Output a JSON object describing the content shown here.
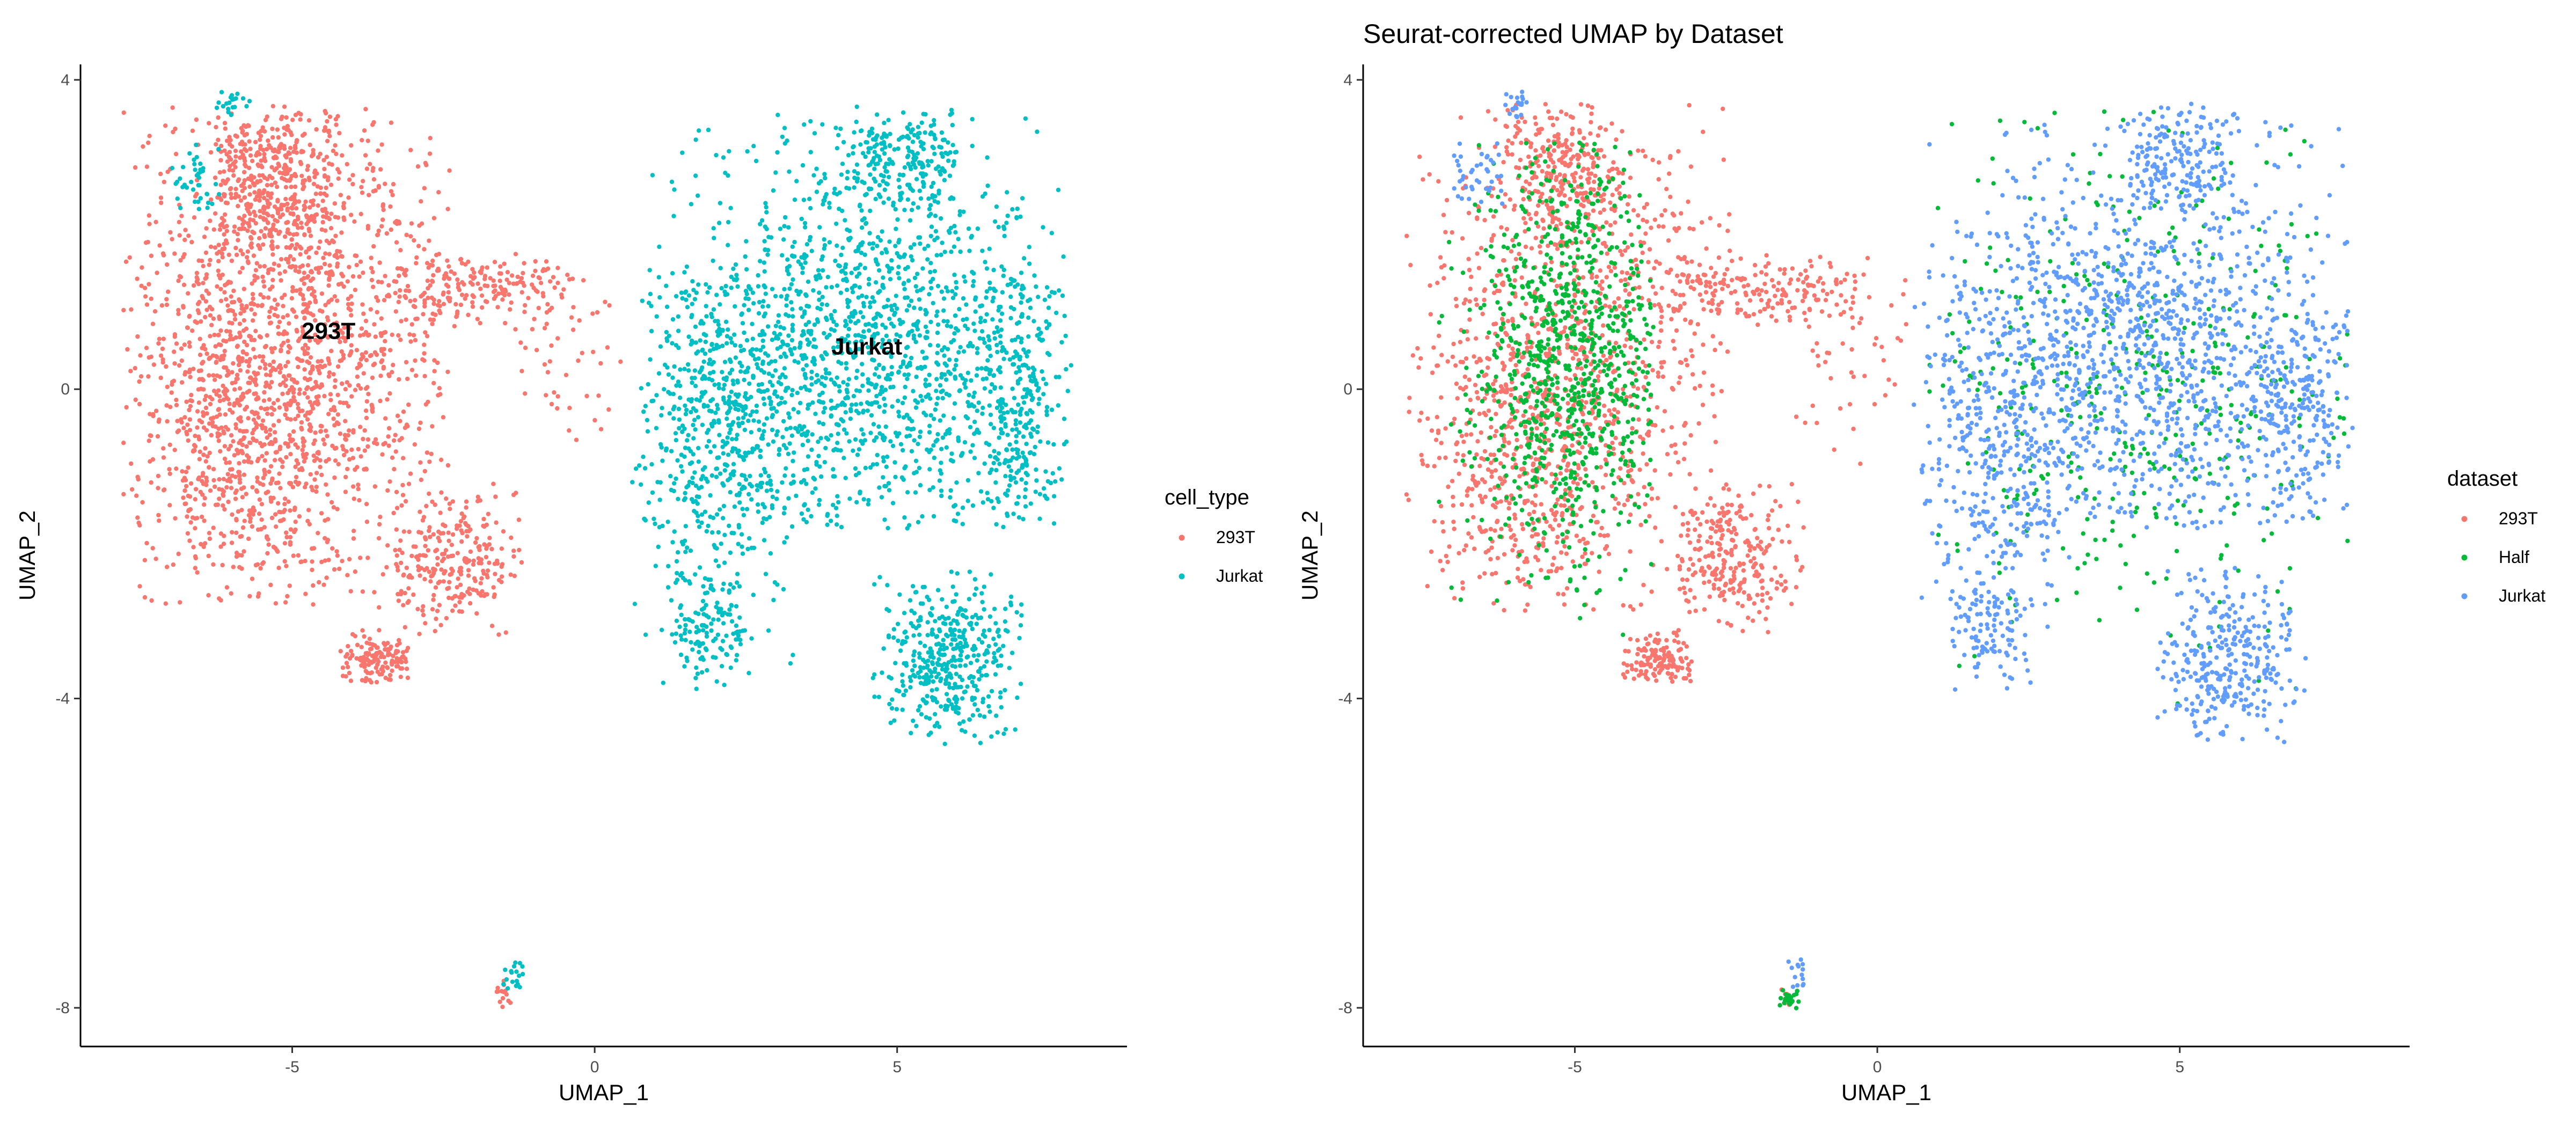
{
  "chart_data": [
    {
      "type": "scatter",
      "title": "",
      "xlabel": "UMAP_1",
      "ylabel": "UMAP_2",
      "xlim": [
        -8.5,
        8.8
      ],
      "ylim": [
        -8.5,
        4.2
      ],
      "x_ticks": [
        -5,
        0,
        5
      ],
      "y_ticks": [
        -8,
        -4,
        0,
        4
      ],
      "x_tick_labels": [
        "-5",
        "0",
        "5"
      ],
      "y_tick_labels": [
        "-8",
        "-4",
        "0",
        "4"
      ],
      "grid": false,
      "legend": {
        "title": "cell_type",
        "position": "right"
      },
      "series": [
        {
          "name": "293T",
          "color": "#F8766D"
        },
        {
          "name": "Jurkat",
          "color": "#00BFC4"
        }
      ],
      "annotations": [
        {
          "text": "293T",
          "x": -4.4,
          "y": 0.65
        },
        {
          "text": "Jurkat",
          "x": 4.5,
          "y": 0.45
        }
      ],
      "clusters": [
        {
          "series": 0,
          "cx": -5.0,
          "cy": 0.8,
          "sx": 1.4,
          "sy": 1.6,
          "n": 1400,
          "xmin": -7.8,
          "xmax": -2.4,
          "ymin": -3.0,
          "ymax": 3.7
        },
        {
          "series": 0,
          "cx": -5.8,
          "cy": -0.8,
          "sx": 0.9,
          "sy": 1.1,
          "n": 500,
          "xmin": -7.6,
          "xmax": -3.5,
          "ymin": -2.8,
          "ymax": 1.2
        },
        {
          "series": 0,
          "cx": -5.3,
          "cy": 2.7,
          "sx": 0.7,
          "sy": 0.6,
          "n": 350,
          "xmin": -6.2,
          "xmax": -4.2,
          "ymin": 1.5,
          "ymax": 3.6
        },
        {
          "series": 0,
          "cx": -2.4,
          "cy": -2.2,
          "sx": 0.6,
          "sy": 0.45,
          "n": 250,
          "xmin": -3.3,
          "xmax": -1.2,
          "ymin": -3.2,
          "ymax": -1.2
        },
        {
          "series": 0,
          "cx": -3.6,
          "cy": -3.5,
          "sx": 0.35,
          "sy": 0.18,
          "n": 140,
          "xmin": -4.2,
          "xmax": -3.0,
          "ymin": -3.8,
          "ymax": -3.1
        },
        {
          "series": 0,
          "cx": -2.0,
          "cy": 1.3,
          "sx": 1.0,
          "sy": 0.22,
          "n": 180,
          "xmin": -3.5,
          "xmax": -0.3,
          "ymin": 0.8,
          "ymax": 1.8
        },
        {
          "series": 0,
          "cx": -0.5,
          "cy": 0.5,
          "sx": 0.6,
          "sy": 0.8,
          "n": 50,
          "xmin": -1.5,
          "xmax": 0.5,
          "ymin": -1.2,
          "ymax": 1.7
        },
        {
          "series": 0,
          "cx": -1.5,
          "cy": -7.85,
          "sx": 0.06,
          "sy": 0.08,
          "n": 14,
          "xmin": -1.7,
          "xmax": -1.3,
          "ymin": -8.0,
          "ymax": -7.6
        },
        {
          "series": 1,
          "cx": 4.5,
          "cy": 0.6,
          "sx": 1.6,
          "sy": 1.3,
          "n": 1500,
          "xmin": 0.8,
          "xmax": 7.8,
          "ymin": -1.8,
          "ymax": 3.6
        },
        {
          "series": 1,
          "cx": 2.0,
          "cy": -0.6,
          "sx": 0.7,
          "sy": 1.2,
          "n": 500,
          "xmin": 0.6,
          "xmax": 3.6,
          "ymin": -3.9,
          "ymax": 1.6
        },
        {
          "series": 1,
          "cx": 7.0,
          "cy": -0.3,
          "sx": 0.45,
          "sy": 0.9,
          "n": 250,
          "xmin": 6.0,
          "xmax": 7.9,
          "ymin": -1.8,
          "ymax": 1.4
        },
        {
          "series": 1,
          "cx": 5.8,
          "cy": -3.5,
          "sx": 0.65,
          "sy": 0.55,
          "n": 420,
          "xmin": 4.6,
          "xmax": 7.1,
          "ymin": -4.6,
          "ymax": -2.3
        },
        {
          "series": 1,
          "cx": 1.8,
          "cy": -3.1,
          "sx": 0.35,
          "sy": 0.4,
          "n": 120,
          "xmin": 1.0,
          "xmax": 2.6,
          "ymin": -3.9,
          "ymax": -2.3
        },
        {
          "series": 1,
          "cx": 5.0,
          "cy": 3.0,
          "sx": 0.6,
          "sy": 0.35,
          "n": 200,
          "xmin": 4.0,
          "xmax": 6.0,
          "ymin": 2.3,
          "ymax": 3.7
        },
        {
          "series": 1,
          "cx": -6.6,
          "cy": 2.7,
          "sx": 0.35,
          "sy": 0.3,
          "n": 40,
          "xmin": -7.0,
          "xmax": -6.2,
          "ymin": 2.3,
          "ymax": 3.2
        },
        {
          "series": 1,
          "cx": -6.0,
          "cy": 3.7,
          "sx": 0.15,
          "sy": 0.1,
          "n": 20,
          "xmin": -6.3,
          "xmax": -5.7,
          "ymin": 3.5,
          "ymax": 3.85
        },
        {
          "series": 1,
          "cx": -1.3,
          "cy": -7.6,
          "sx": 0.12,
          "sy": 0.15,
          "n": 18,
          "xmin": -1.6,
          "xmax": -1.1,
          "ymin": -7.9,
          "ymax": -7.3
        }
      ]
    },
    {
      "type": "scatter",
      "title": "Seurat-corrected UMAP by Dataset",
      "xlabel": "UMAP_1",
      "ylabel": "UMAP_2",
      "xlim": [
        -8.5,
        8.8
      ],
      "ylim": [
        -8.5,
        4.2
      ],
      "x_ticks": [
        -5,
        0,
        5
      ],
      "y_ticks": [
        -8,
        -4,
        0,
        4
      ],
      "x_tick_labels": [
        "-5",
        "0",
        "5"
      ],
      "y_tick_labels": [
        "-8",
        "-4",
        "0",
        "4"
      ],
      "grid": false,
      "legend": {
        "title": "dataset",
        "position": "right"
      },
      "series": [
        {
          "name": "293T",
          "color": "#F8766D"
        },
        {
          "name": "Half",
          "color": "#00BA38"
        },
        {
          "name": "Jurkat",
          "color": "#619CFF"
        }
      ],
      "annotations": [],
      "clusters": [
        {
          "series": 0,
          "cx": -5.0,
          "cy": 0.6,
          "sx": 1.4,
          "sy": 1.6,
          "n": 900,
          "xmin": -7.8,
          "xmax": -2.4,
          "ymin": -3.0,
          "ymax": 3.7
        },
        {
          "series": 0,
          "cx": -5.9,
          "cy": -1.0,
          "sx": 0.8,
          "sy": 1.0,
          "n": 350,
          "xmin": -7.6,
          "xmax": -3.8,
          "ymin": -2.8,
          "ymax": 1.2
        },
        {
          "series": 0,
          "cx": -5.3,
          "cy": 2.8,
          "sx": 0.6,
          "sy": 0.5,
          "n": 220,
          "xmin": -6.2,
          "xmax": -4.2,
          "ymin": 1.8,
          "ymax": 3.6
        },
        {
          "series": 0,
          "cx": -2.4,
          "cy": -2.2,
          "sx": 0.6,
          "sy": 0.45,
          "n": 250,
          "xmin": -3.3,
          "xmax": -1.2,
          "ymin": -3.2,
          "ymax": -1.2
        },
        {
          "series": 0,
          "cx": -3.6,
          "cy": -3.5,
          "sx": 0.35,
          "sy": 0.18,
          "n": 140,
          "xmin": -4.2,
          "xmax": -3.0,
          "ymin": -3.8,
          "ymax": -3.1
        },
        {
          "series": 0,
          "cx": -2.0,
          "cy": 1.3,
          "sx": 1.0,
          "sy": 0.22,
          "n": 180,
          "xmin": -3.5,
          "xmax": -0.3,
          "ymin": 0.8,
          "ymax": 1.8
        },
        {
          "series": 0,
          "cx": -0.5,
          "cy": 0.5,
          "sx": 0.6,
          "sy": 0.8,
          "n": 50,
          "xmin": -1.5,
          "xmax": 0.5,
          "ymin": -1.2,
          "ymax": 1.7
        },
        {
          "series": 0,
          "cx": -1.5,
          "cy": -7.85,
          "sx": 0.06,
          "sy": 0.08,
          "n": 10,
          "xmin": -1.7,
          "xmax": -1.3,
          "ymin": -8.0,
          "ymax": -7.6
        },
        {
          "series": 1,
          "cx": -5.1,
          "cy": 0.4,
          "sx": 0.8,
          "sy": 1.3,
          "n": 900,
          "xmin": -7.3,
          "xmax": -3.7,
          "ymin": -3.2,
          "ymax": 3.2
        },
        {
          "series": 1,
          "cx": 4.3,
          "cy": 0.2,
          "sx": 1.9,
          "sy": 1.7,
          "n": 420,
          "xmin": 0.8,
          "xmax": 7.8,
          "ymin": -4.5,
          "ymax": 3.6
        },
        {
          "series": 1,
          "cx": -1.45,
          "cy": -7.9,
          "sx": 0.08,
          "sy": 0.06,
          "n": 24,
          "xmin": -1.7,
          "xmax": -1.2,
          "ymin": -8.05,
          "ymax": -7.7
        },
        {
          "series": 2,
          "cx": 4.5,
          "cy": 0.6,
          "sx": 1.6,
          "sy": 1.3,
          "n": 1200,
          "xmin": 0.8,
          "xmax": 7.8,
          "ymin": -1.8,
          "ymax": 3.6
        },
        {
          "series": 2,
          "cx": 2.0,
          "cy": -0.6,
          "sx": 0.7,
          "sy": 1.2,
          "n": 400,
          "xmin": 0.6,
          "xmax": 3.6,
          "ymin": -3.9,
          "ymax": 1.6
        },
        {
          "series": 2,
          "cx": 7.0,
          "cy": -0.3,
          "sx": 0.45,
          "sy": 0.9,
          "n": 200,
          "xmin": 6.0,
          "xmax": 7.9,
          "ymin": -1.8,
          "ymax": 1.4
        },
        {
          "series": 2,
          "cx": 5.8,
          "cy": -3.5,
          "sx": 0.65,
          "sy": 0.55,
          "n": 320,
          "xmin": 4.6,
          "xmax": 7.1,
          "ymin": -4.6,
          "ymax": -2.3
        },
        {
          "series": 2,
          "cx": 1.8,
          "cy": -3.1,
          "sx": 0.35,
          "sy": 0.4,
          "n": 100,
          "xmin": 1.0,
          "xmax": 2.6,
          "ymin": -3.9,
          "ymax": -2.3
        },
        {
          "series": 2,
          "cx": 5.0,
          "cy": 3.0,
          "sx": 0.6,
          "sy": 0.35,
          "n": 160,
          "xmin": 4.0,
          "xmax": 6.0,
          "ymin": 2.3,
          "ymax": 3.7
        },
        {
          "series": 2,
          "cx": -6.6,
          "cy": 2.7,
          "sx": 0.35,
          "sy": 0.3,
          "n": 40,
          "xmin": -7.0,
          "xmax": -6.2,
          "ymin": 2.3,
          "ymax": 3.2
        },
        {
          "series": 2,
          "cx": -6.0,
          "cy": 3.7,
          "sx": 0.15,
          "sy": 0.1,
          "n": 20,
          "xmin": -6.3,
          "xmax": -5.7,
          "ymin": 3.5,
          "ymax": 3.85
        },
        {
          "series": 2,
          "cx": -1.3,
          "cy": -7.6,
          "sx": 0.12,
          "sy": 0.15,
          "n": 14,
          "xmin": -1.6,
          "xmax": -1.1,
          "ymin": -7.9,
          "ymax": -7.3
        }
      ]
    }
  ]
}
